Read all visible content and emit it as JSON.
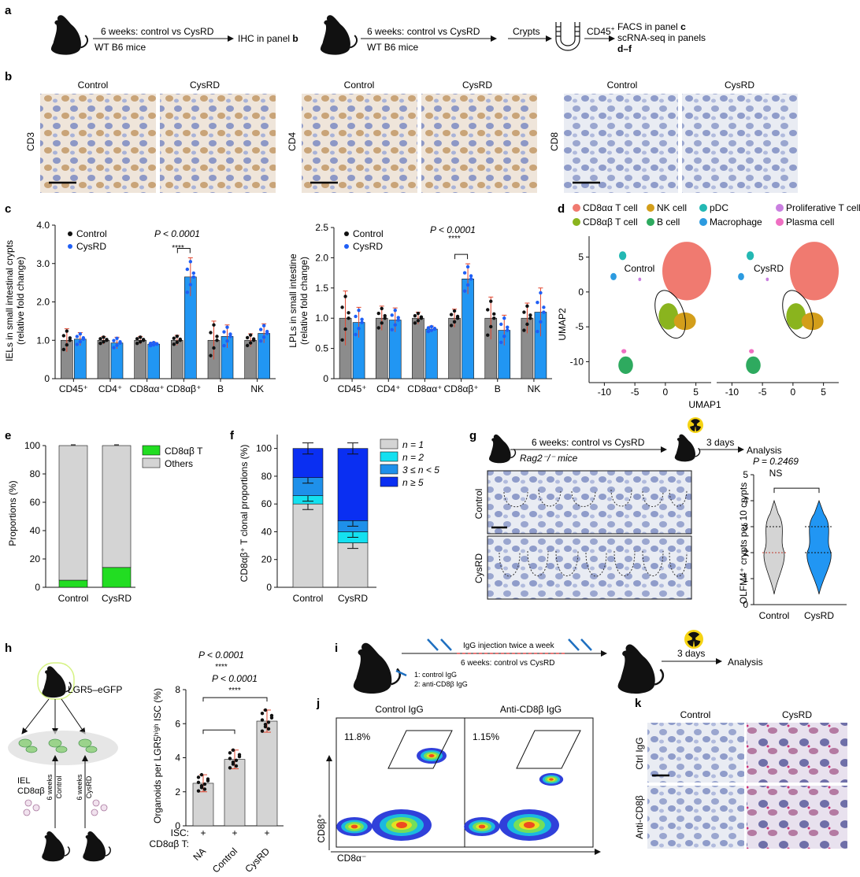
{
  "panels": {
    "a": "a",
    "b": "b",
    "c": "c",
    "d": "d",
    "e": "e",
    "f": "f",
    "g": "g",
    "h": "h",
    "i": "i",
    "j": "j",
    "k": "k"
  },
  "panel_a": {
    "arrow1_label": "6 weeks: control vs CysRD",
    "mice1_label": "WT B6 mice",
    "result1": "IHC in panel",
    "result1_ref": "b",
    "arrow2_label": "6 weeks: control vs CysRD",
    "mice2_label": "WT B6 mice",
    "crypts_label": "Crypts",
    "cd45_label": "CD45",
    "cd45_sup": "+",
    "out_line1": "FACS in panel",
    "out_line1_ref": "c",
    "out_line2": "scRNA-seq in panels",
    "out_line3": "d–f"
  },
  "panel_b": {
    "groups": [
      {
        "marker": "CD3",
        "left": "Control",
        "right": "CysRD"
      },
      {
        "marker": "CD4",
        "left": "Control",
        "right": "CysRD"
      },
      {
        "marker": "CD8",
        "left": "Control",
        "right": "CysRD"
      }
    ]
  },
  "panel_c": {
    "left": {
      "ylabel1": "IELs in small intestinal crypts",
      "ylabel2": "(relative fold change)",
      "pvalue": "P < 0.0001",
      "stars": "****",
      "legend": [
        "Control",
        "CysRD"
      ]
    },
    "right": {
      "ylabel1": "LPLs in small intestine",
      "ylabel2": "(relative fold change)",
      "pvalue": "P < 0.0001",
      "stars": "****",
      "legend": [
        "Control",
        "CysRD"
      ]
    }
  },
  "panel_d": {
    "legend": [
      "CD8αα T cell",
      "CD8αβ T cell",
      "NK cell",
      "B cell",
      "pDC",
      "Macrophage",
      "Proliferative T cell",
      "Plasma cell"
    ],
    "legend_colors": [
      "#f07a70",
      "#8ab41e",
      "#d39e1a",
      "#2eaa5f",
      "#23b8b3",
      "#2c9be0",
      "#c97fe0",
      "#ef6fc2"
    ],
    "left_title": "Control",
    "right_title": "CysRD",
    "xlabel": "UMAP1",
    "ylabel": "UMAP2"
  },
  "panel_e": {
    "ylabel": "Proportions (%)",
    "legend": [
      "CD8αβ T",
      "Others"
    ]
  },
  "panel_f": {
    "ylabel": "CD8αβ⁺ T clonal proportions (%)",
    "legend": [
      "n = 1",
      "n = 2",
      "3 ≤ n < 5",
      "n ≥ 5"
    ]
  },
  "panel_g": {
    "arrow_label": "6 weeks: control vs CysRD",
    "mice_label": "Rag2⁻/⁻ mice",
    "after_label": "3 days",
    "analysis": "Analysis",
    "row1": "Control",
    "row2": "CysRD",
    "pvalue": "P = 0.2469",
    "ns": "NS",
    "ylabel": "OLFM4⁺ crypts per 10 crypts"
  },
  "panel_h": {
    "mouse_label": "LGR5–eGFP",
    "iel_label1": "IEL",
    "iel_label2": "CD8αβ",
    "arm1": "6 weeks",
    "arm1b": "Control",
    "arm2": "6 weeks",
    "arm2b": "CysRD",
    "ylabel": "Organoids per LGR5ʰⁱᵍʰ ISC (%)",
    "p1": "P < 0.0001",
    "p2": "P < 0.0001",
    "stars1": "****",
    "stars2": "****",
    "row1_label": "ISC:",
    "row2_label": "CD8αβ T:",
    "plus": "+",
    "xticks": [
      "NA",
      "Control",
      "CysRD"
    ]
  },
  "panel_i": {
    "injection": "IgG injection twice a week",
    "arrow_label": "6 weeks: control vs CysRD",
    "opt1": "1: control IgG",
    "opt2": "2: anti-CD8β IgG",
    "after_label": "3 days",
    "analysis": "Analysis"
  },
  "panel_j": {
    "left_title": "Control IgG",
    "right_title": "Anti-CD8β IgG",
    "left_pct": "11.8%",
    "right_pct": "1.15%",
    "ylabel": "CD8β⁺",
    "xlabel": "CD8α⁻"
  },
  "panel_k": {
    "col1": "Control",
    "col2": "CysRD",
    "row1": "Ctrl IgG",
    "row2": "Anti-CD8β"
  },
  "chart_data": [
    {
      "id": "c-left",
      "type": "bar",
      "categories": [
        "CD45⁺",
        "CD4⁺",
        "CD8αα⁺",
        "CD8αβ⁺",
        "B",
        "NK"
      ],
      "series": [
        {
          "name": "Control",
          "values": [
            1.0,
            1.0,
            1.0,
            1.0,
            1.0,
            1.0
          ],
          "err": [
            0.3,
            0.1,
            0.1,
            0.13,
            0.5,
            0.17
          ]
        },
        {
          "name": "CysRD",
          "values": [
            1.03,
            0.93,
            0.9,
            2.65,
            1.1,
            1.18
          ],
          "err": [
            0.17,
            0.15,
            0.05,
            0.5,
            0.3,
            0.25
          ]
        }
      ],
      "ylim": [
        0,
        4
      ],
      "yticks": [
        0,
        1.0,
        2.0,
        3.0,
        4.0
      ],
      "colors": {
        "Control": "#8c8c8c",
        "CysRD": "#2196f3"
      }
    },
    {
      "id": "c-right",
      "type": "bar",
      "categories": [
        "CD45⁺",
        "CD4⁺",
        "CD8αα⁺",
        "CD8αβ⁺",
        "B",
        "NK"
      ],
      "series": [
        {
          "name": "Control",
          "values": [
            1.0,
            1.0,
            1.0,
            1.0,
            1.0,
            1.0
          ],
          "err": [
            0.45,
            0.2,
            0.1,
            0.15,
            0.35,
            0.25
          ]
        },
        {
          "name": "CysRD",
          "values": [
            0.93,
            0.97,
            0.82,
            1.65,
            0.8,
            1.1
          ],
          "err": [
            0.25,
            0.2,
            0.05,
            0.25,
            0.25,
            0.4
          ]
        }
      ],
      "ylim": [
        0,
        2.5
      ],
      "yticks": [
        0,
        0.5,
        1.0,
        1.5,
        2.0,
        2.5
      ],
      "colors": {
        "Control": "#8c8c8c",
        "CysRD": "#2196f3"
      }
    },
    {
      "id": "d",
      "type": "scatter",
      "xlim": [
        -12.5,
        7.5
      ],
      "ylim": [
        -13,
        8
      ],
      "xticks": [
        -10,
        -5,
        0,
        5
      ],
      "yticks": [
        5,
        0,
        -5,
        -10
      ]
    },
    {
      "id": "e",
      "type": "bar",
      "categories": [
        "Control",
        "CysRD"
      ],
      "series": [
        {
          "name": "CD8αβ T",
          "values": [
            5,
            14
          ]
        },
        {
          "name": "Others",
          "values": [
            95,
            86
          ]
        }
      ],
      "ylim": [
        0,
        100
      ],
      "yticks": [
        0,
        20,
        40,
        60,
        80,
        100
      ],
      "colors": {
        "CD8αβ T": "#22dd22",
        "Others": "#d4d4d4"
      }
    },
    {
      "id": "f",
      "type": "bar",
      "categories": [
        "Control",
        "CysRD"
      ],
      "series": [
        {
          "name": "n = 1",
          "values": [
            60,
            32
          ]
        },
        {
          "name": "n = 2",
          "values": [
            6,
            8
          ]
        },
        {
          "name": "3 ≤ n < 5",
          "values": [
            13,
            8
          ]
        },
        {
          "name": "n ≥ 5",
          "values": [
            21,
            52
          ]
        }
      ],
      "ylim": [
        0,
        110
      ],
      "yticks": [
        0,
        20,
        40,
        60,
        80,
        100
      ],
      "colors": {
        "n = 1": "#d4d4d4",
        "n = 2": "#14e0f0",
        "3 ≤ n < 5": "#1e90ea",
        "n ≥ 5": "#0a2ff2"
      }
    },
    {
      "id": "g",
      "type": "violin",
      "categories": [
        "Control",
        "CysRD"
      ],
      "ylim": [
        0,
        5
      ],
      "yticks": [
        0,
        1,
        2,
        3,
        4,
        5
      ]
    },
    {
      "id": "h",
      "type": "bar",
      "categories": [
        "NA",
        "Control",
        "CysRD"
      ],
      "values": [
        2.5,
        3.9,
        6.15
      ],
      "err": [
        0.5,
        0.55,
        0.65
      ],
      "ylim": [
        0,
        8
      ],
      "yticks": [
        0,
        2,
        4,
        6,
        8
      ]
    }
  ]
}
